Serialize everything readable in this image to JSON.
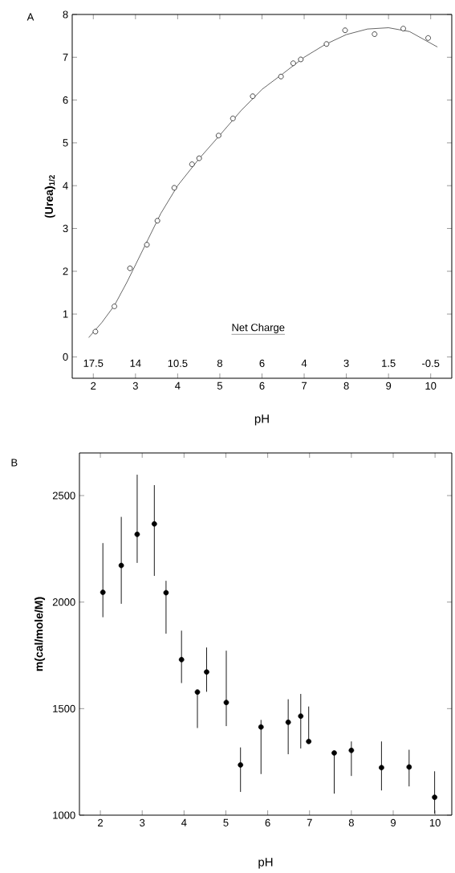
{
  "chart_data": [
    {
      "type": "scatter",
      "title": "A",
      "xlabel": "pH",
      "ylabel": "(Urea)$_{1/2}$",
      "xlim": [
        1.5,
        10.5
      ],
      "ylim": [
        -0.5,
        8
      ],
      "xticks": [
        2,
        3,
        4,
        5,
        6,
        7,
        8,
        9,
        10
      ],
      "yticks": [
        0,
        1,
        2,
        3,
        4,
        5,
        6,
        7,
        8
      ],
      "annotations": [
        "Net Charge",
        {
          "text": "17.5",
          "x": 2,
          "y": -0.15
        },
        {
          "text": "14",
          "x": 3,
          "y": -0.15
        },
        {
          "text": "10.5",
          "x": 4,
          "y": -0.15
        },
        {
          "text": "8",
          "x": 5,
          "y": -0.15
        },
        {
          "text": "6",
          "x": 6,
          "y": -0.15
        },
        {
          "text": "4",
          "x": 7,
          "y": -0.15
        },
        {
          "text": "3",
          "x": 8,
          "y": -0.15
        },
        {
          "text": "1.5",
          "x": 9,
          "y": -0.15
        },
        {
          "text": "-0.5",
          "x": 10,
          "y": -0.15
        }
      ],
      "series": [
        {
          "type": "scatter",
          "color": "#000000",
          "marker": "circle",
          "x": [
            2.05,
            2.5,
            2.87,
            3.27,
            3.52,
            3.92,
            4.34,
            4.51,
            4.97,
            5.31,
            5.78,
            6.45,
            6.74,
            6.92,
            7.53,
            7.97,
            8.67,
            9.35,
            9.94
          ],
          "values": [
            0.59,
            1.18,
            2.07,
            2.62,
            3.18,
            3.95,
            4.5,
            4.64,
            5.17,
            5.57,
            6.09,
            6.55,
            6.86,
            6.95,
            7.31,
            7.63,
            7.54,
            7.67,
            7.45
          ]
        },
        {
          "type": "line",
          "color": "#000000",
          "marker": "none",
          "x": [
            1.89,
            2.2,
            2.5,
            2.8,
            3.0,
            3.3,
            3.6,
            4.0,
            4.5,
            5.0,
            5.5,
            6.0,
            6.5,
            7.0,
            7.5,
            8.0,
            8.5,
            9.0,
            9.5,
            10.16
          ],
          "values": [
            0.45,
            0.8,
            1.2,
            1.75,
            2.15,
            2.75,
            3.35,
            4.0,
            4.62,
            5.18,
            5.75,
            6.25,
            6.62,
            7.0,
            7.3,
            7.53,
            7.66,
            7.69,
            7.6,
            7.24
          ]
        }
      ]
    },
    {
      "type": "scatter",
      "title": "B",
      "xlabel": "pH",
      "ylabel": "m(cal/mole/M)",
      "xlim": [
        1.5,
        10.4
      ],
      "ylim": [
        1000,
        2700
      ],
      "xticks": [
        2,
        3,
        4,
        5,
        6,
        7,
        8,
        9,
        10
      ],
      "yticks": [
        1000,
        1500,
        2000,
        2500
      ],
      "marker": "circle",
      "color": "#000000",
      "x": [
        2.06,
        2.5,
        2.88,
        3.29,
        3.57,
        3.94,
        4.32,
        4.54,
        5.01,
        5.35,
        5.84,
        6.49,
        6.79,
        6.98,
        7.59,
        8.0,
        8.72,
        9.38,
        9.99
      ],
      "values": [
        2046,
        2172,
        2318,
        2367,
        2044,
        1730,
        1578,
        1672,
        1529,
        1236,
        1414,
        1436,
        1465,
        1346,
        1292,
        1304,
        1223,
        1226,
        1084
      ],
      "errors": [
        [
          1929,
          2277
        ],
        [
          1992,
          2400
        ],
        [
          2184,
          2598
        ],
        [
          2123,
          2549
        ],
        [
          1852,
          2100
        ],
        [
          1620,
          1866
        ],
        [
          1409,
          1578
        ],
        [
          1579,
          1787
        ],
        [
          1418,
          1772
        ],
        [
          1109,
          1318
        ],
        [
          1193,
          1447
        ],
        [
          1286,
          1544
        ],
        [
          1313,
          1569
        ],
        [
          1346,
          1510
        ],
        [
          1101,
          1292
        ],
        [
          1184,
          1346
        ],
        [
          1116,
          1346
        ],
        [
          1135,
          1307
        ],
        [
          1007,
          1206
        ]
      ]
    }
  ]
}
